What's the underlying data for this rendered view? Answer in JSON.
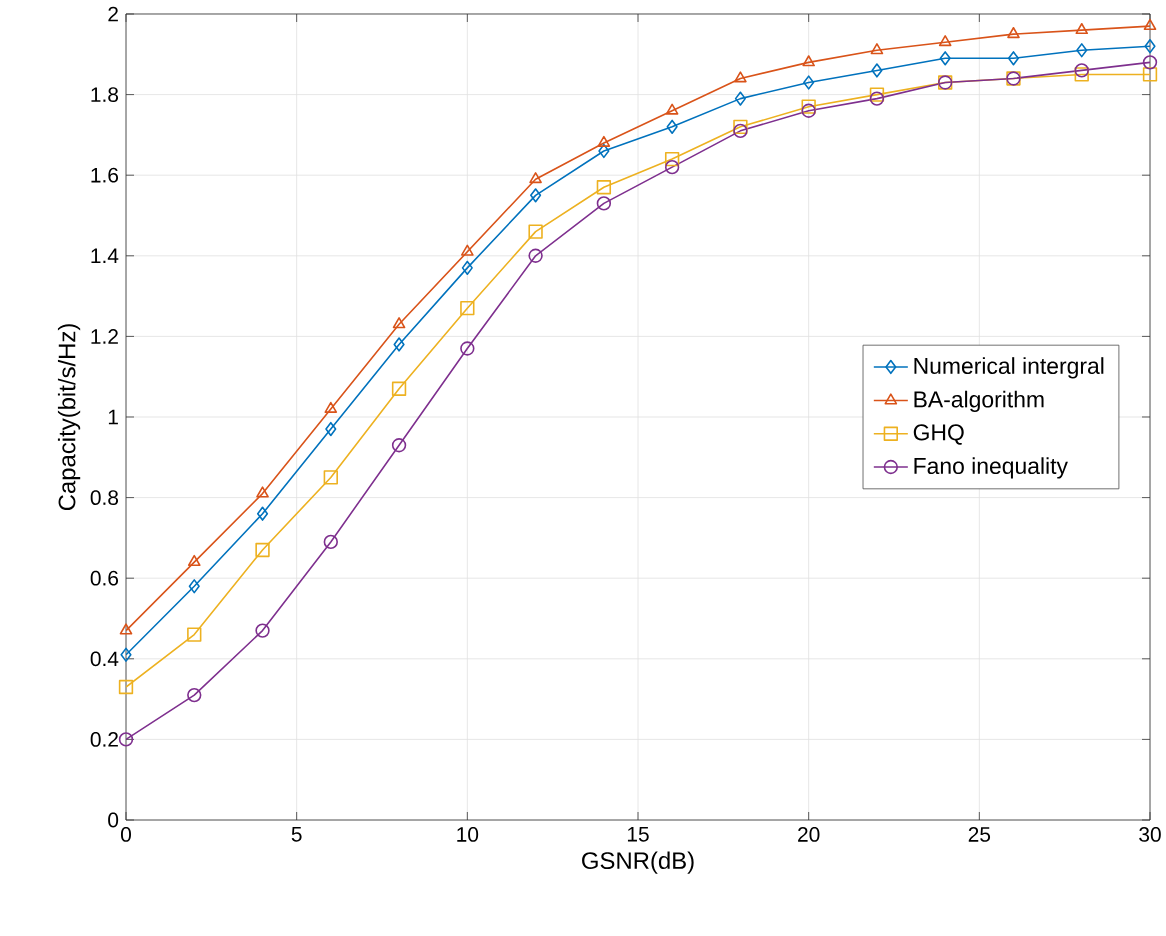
{
  "chart_data": {
    "type": "line",
    "xlabel": "GSNR(dB)",
    "ylabel": "Capacity(bit/s/Hz)",
    "x": [
      0,
      2,
      4,
      6,
      8,
      10,
      12,
      14,
      16,
      18,
      20,
      22,
      24,
      26,
      28,
      30
    ],
    "series": [
      {
        "name": "Numerical intergral",
        "color": "#0072bd",
        "marker": "diamond",
        "values": [
          0.41,
          0.58,
          0.76,
          0.97,
          1.18,
          1.37,
          1.55,
          1.66,
          1.72,
          1.79,
          1.83,
          1.86,
          1.89,
          1.89,
          1.91,
          1.92
        ]
      },
      {
        "name": "BA-algorithm",
        "color": "#d95319",
        "marker": "triangle",
        "values": [
          0.47,
          0.64,
          0.81,
          1.02,
          1.23,
          1.41,
          1.59,
          1.68,
          1.76,
          1.84,
          1.88,
          1.91,
          1.93,
          1.95,
          1.96,
          1.97
        ]
      },
      {
        "name": "GHQ",
        "color": "#edb120",
        "marker": "square",
        "values": [
          0.33,
          0.46,
          0.67,
          0.85,
          1.07,
          1.27,
          1.46,
          1.57,
          1.64,
          1.72,
          1.77,
          1.8,
          1.83,
          1.84,
          1.85,
          1.85
        ]
      },
      {
        "name": "Fano inequality",
        "color": "#7e2f8e",
        "marker": "circle",
        "values": [
          0.2,
          0.31,
          0.47,
          0.69,
          0.93,
          1.17,
          1.4,
          1.53,
          1.62,
          1.71,
          1.76,
          1.79,
          1.83,
          1.84,
          1.86,
          1.88
        ]
      }
    ],
    "xlim": [
      0,
      30
    ],
    "xticks": [
      0,
      5,
      10,
      15,
      20,
      25,
      30
    ],
    "ylim": [
      0,
      2
    ],
    "yticks": [
      0,
      0.2,
      0.4,
      0.6,
      0.8,
      1,
      1.2,
      1.4,
      1.6,
      1.8,
      2
    ],
    "grid": true,
    "legend": "right",
    "line_style": "solid"
  }
}
